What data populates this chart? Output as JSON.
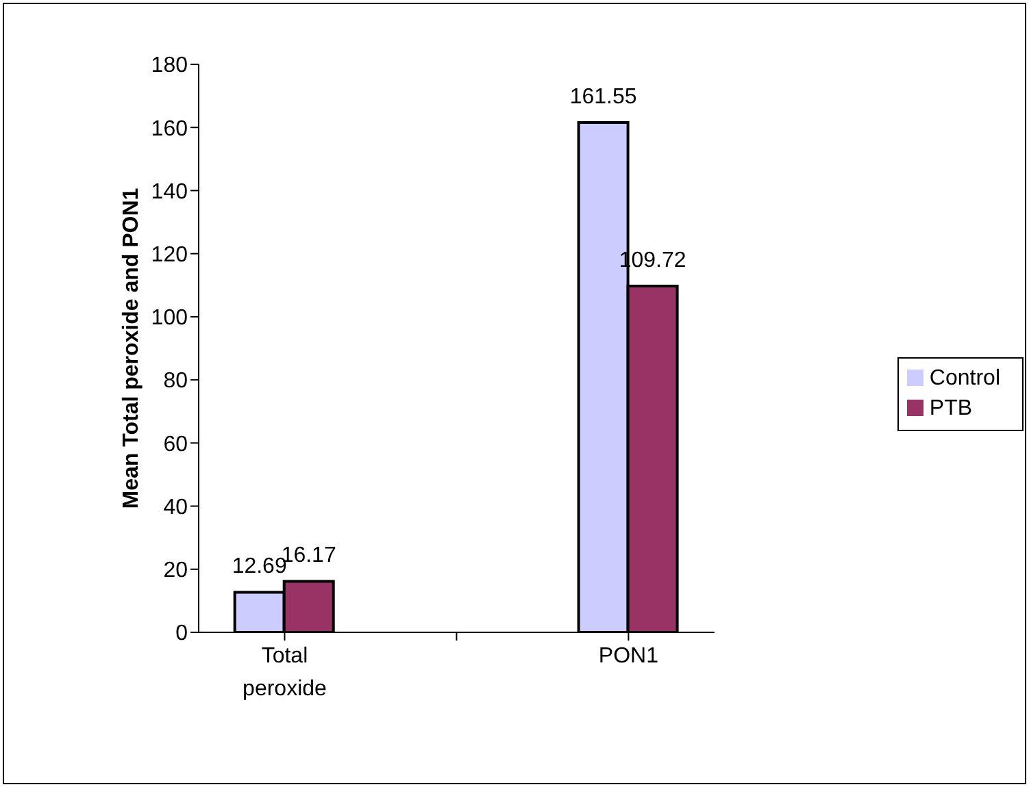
{
  "chart_data": {
    "type": "bar",
    "ylabel": "Mean Total peroxide and PON1",
    "categories": [
      "Total peroxide",
      null,
      "PON1"
    ],
    "series": [
      {
        "name": "Control",
        "color": "#ccccff",
        "values": [
          12.69,
          null,
          161.55
        ]
      },
      {
        "name": "PTB",
        "color": "#993366",
        "values": [
          16.17,
          null,
          109.72
        ]
      }
    ],
    "ylim": [
      0,
      180
    ],
    "yticks": [
      0,
      20,
      40,
      60,
      80,
      100,
      120,
      140,
      160,
      180
    ],
    "data_labels": true,
    "grid": false,
    "legend": "right"
  }
}
